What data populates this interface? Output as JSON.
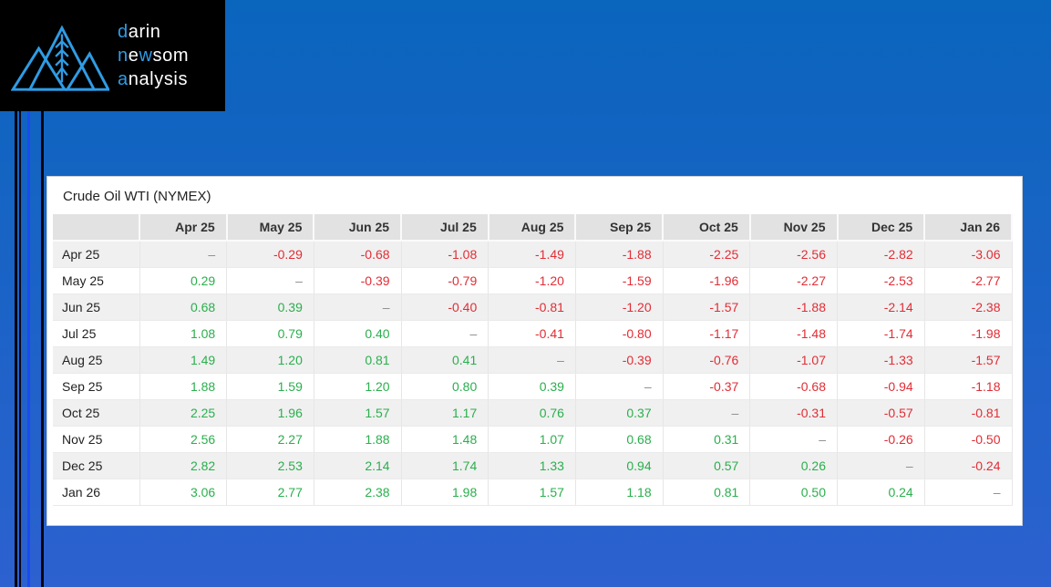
{
  "logo": {
    "lines": [
      {
        "segments": [
          {
            "text": "d",
            "highlight": true
          },
          {
            "text": "arin",
            "highlight": false
          }
        ]
      },
      {
        "segments": [
          {
            "text": "n",
            "highlight": true
          },
          {
            "text": "e",
            "highlight": false
          },
          {
            "text": "w",
            "highlight": true
          },
          {
            "text": "som",
            "highlight": false
          }
        ]
      },
      {
        "segments": [
          {
            "text": "a",
            "highlight": true
          },
          {
            "text": "nalysis",
            "highlight": false
          }
        ]
      }
    ],
    "icon": "mountains-wheat-icon"
  },
  "panel": {
    "title": "Crude Oil WTI (NYMEX)",
    "table": {
      "columns": [
        "Apr 25",
        "May 25",
        "Jun 25",
        "Jul 25",
        "Aug 25",
        "Sep 25",
        "Oct 25",
        "Nov 25",
        "Dec 25",
        "Jan 26"
      ],
      "dash_char": "–",
      "rows": [
        {
          "label": "Apr 25",
          "values": [
            "–",
            "-0.29",
            "-0.68",
            "-1.08",
            "-1.49",
            "-1.88",
            "-2.25",
            "-2.56",
            "-2.82",
            "-3.06"
          ]
        },
        {
          "label": "May 25",
          "values": [
            "0.29",
            "–",
            "-0.39",
            "-0.79",
            "-1.20",
            "-1.59",
            "-1.96",
            "-2.27",
            "-2.53",
            "-2.77"
          ]
        },
        {
          "label": "Jun 25",
          "values": [
            "0.68",
            "0.39",
            "–",
            "-0.40",
            "-0.81",
            "-1.20",
            "-1.57",
            "-1.88",
            "-2.14",
            "-2.38"
          ]
        },
        {
          "label": "Jul 25",
          "values": [
            "1.08",
            "0.79",
            "0.40",
            "–",
            "-0.41",
            "-0.80",
            "-1.17",
            "-1.48",
            "-1.74",
            "-1.98"
          ]
        },
        {
          "label": "Aug 25",
          "values": [
            "1.49",
            "1.20",
            "0.81",
            "0.41",
            "–",
            "-0.39",
            "-0.76",
            "-1.07",
            "-1.33",
            "-1.57"
          ]
        },
        {
          "label": "Sep 25",
          "values": [
            "1.88",
            "1.59",
            "1.20",
            "0.80",
            "0.39",
            "–",
            "-0.37",
            "-0.68",
            "-0.94",
            "-1.18"
          ]
        },
        {
          "label": "Oct 25",
          "values": [
            "2.25",
            "1.96",
            "1.57",
            "1.17",
            "0.76",
            "0.37",
            "–",
            "-0.31",
            "-0.57",
            "-0.81"
          ]
        },
        {
          "label": "Nov 25",
          "values": [
            "2.56",
            "2.27",
            "1.88",
            "1.48",
            "1.07",
            "0.68",
            "0.31",
            "–",
            "-0.26",
            "-0.50"
          ]
        },
        {
          "label": "Dec 25",
          "values": [
            "2.82",
            "2.53",
            "2.14",
            "1.74",
            "1.33",
            "0.94",
            "0.57",
            "0.26",
            "–",
            "-0.24"
          ]
        },
        {
          "label": "Jan 26",
          "values": [
            "3.06",
            "2.77",
            "2.38",
            "1.98",
            "1.57",
            "1.18",
            "0.81",
            "0.50",
            "0.24",
            "–"
          ]
        }
      ]
    }
  },
  "colors": {
    "positive": "#2aaf4d",
    "negative": "#e12d35",
    "dash": "#8c8c8c",
    "accent_blue": "#2f9ce4",
    "background_top": "#0a65bd",
    "background_bottom": "#2c61cf",
    "bright_line_blue": "#1b4af0"
  }
}
